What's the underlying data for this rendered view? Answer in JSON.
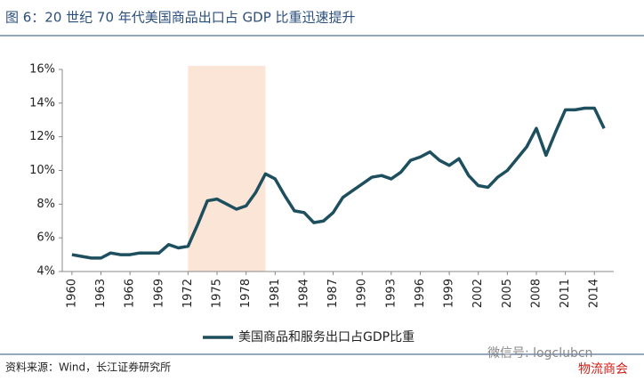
{
  "chart_data": {
    "type": "line",
    "title": "图 6：20 世纪 70 年代美国商品出口占 GDP 比重迅速提升",
    "x": [
      1960,
      1961,
      1962,
      1963,
      1964,
      1965,
      1966,
      1967,
      1968,
      1969,
      1970,
      1971,
      1972,
      1973,
      1974,
      1975,
      1976,
      1977,
      1978,
      1979,
      1980,
      1981,
      1982,
      1983,
      1984,
      1985,
      1986,
      1987,
      1988,
      1989,
      1990,
      1991,
      1992,
      1993,
      1994,
      1995,
      1996,
      1997,
      1998,
      1999,
      2000,
      2001,
      2002,
      2003,
      2004,
      2005,
      2006,
      2007,
      2008,
      2009,
      2010,
      2011,
      2012,
      2013,
      2014,
      2015
    ],
    "series": [
      {
        "name": "美国商品和服务出口占GDP比重",
        "color": "#1d4f5e",
        "values": [
          5.0,
          4.9,
          4.8,
          4.8,
          5.1,
          5.0,
          5.0,
          5.1,
          5.1,
          5.1,
          5.6,
          5.4,
          5.5,
          6.8,
          8.2,
          8.3,
          8.0,
          7.7,
          7.9,
          8.7,
          9.8,
          9.5,
          8.5,
          7.6,
          7.5,
          6.9,
          7.0,
          7.5,
          8.4,
          8.8,
          9.2,
          9.6,
          9.7,
          9.5,
          9.9,
          10.6,
          10.8,
          11.1,
          10.6,
          10.3,
          10.7,
          9.7,
          9.1,
          9.0,
          9.6,
          10.0,
          10.7,
          11.4,
          12.5,
          10.9,
          12.3,
          13.6,
          13.6,
          13.7,
          13.7,
          12.5
        ]
      }
    ],
    "xlim": [
      1959,
      2016
    ],
    "xticks": [
      1960,
      1963,
      1966,
      1969,
      1972,
      1975,
      1978,
      1981,
      1984,
      1987,
      1990,
      1993,
      1996,
      1999,
      2002,
      2005,
      2008,
      2011,
      2014
    ],
    "ylim": [
      4,
      16
    ],
    "yticks": [
      {
        "value": 4,
        "label": "4%"
      },
      {
        "value": 6,
        "label": "6%"
      },
      {
        "value": 8,
        "label": "8%"
      },
      {
        "value": 10,
        "label": "10%"
      },
      {
        "value": 12,
        "label": "12%"
      },
      {
        "value": 14,
        "label": "14%"
      },
      {
        "value": 16,
        "label": "16%"
      }
    ],
    "highlight_range": [
      1972,
      1980
    ],
    "highlight_color": "#fbe5d6",
    "grid": false,
    "legend": "bottom",
    "source": "资料来源：Wind，长江证券研究所",
    "watermarks": [
      "微信号: logclubcn",
      "物流商会"
    ]
  }
}
